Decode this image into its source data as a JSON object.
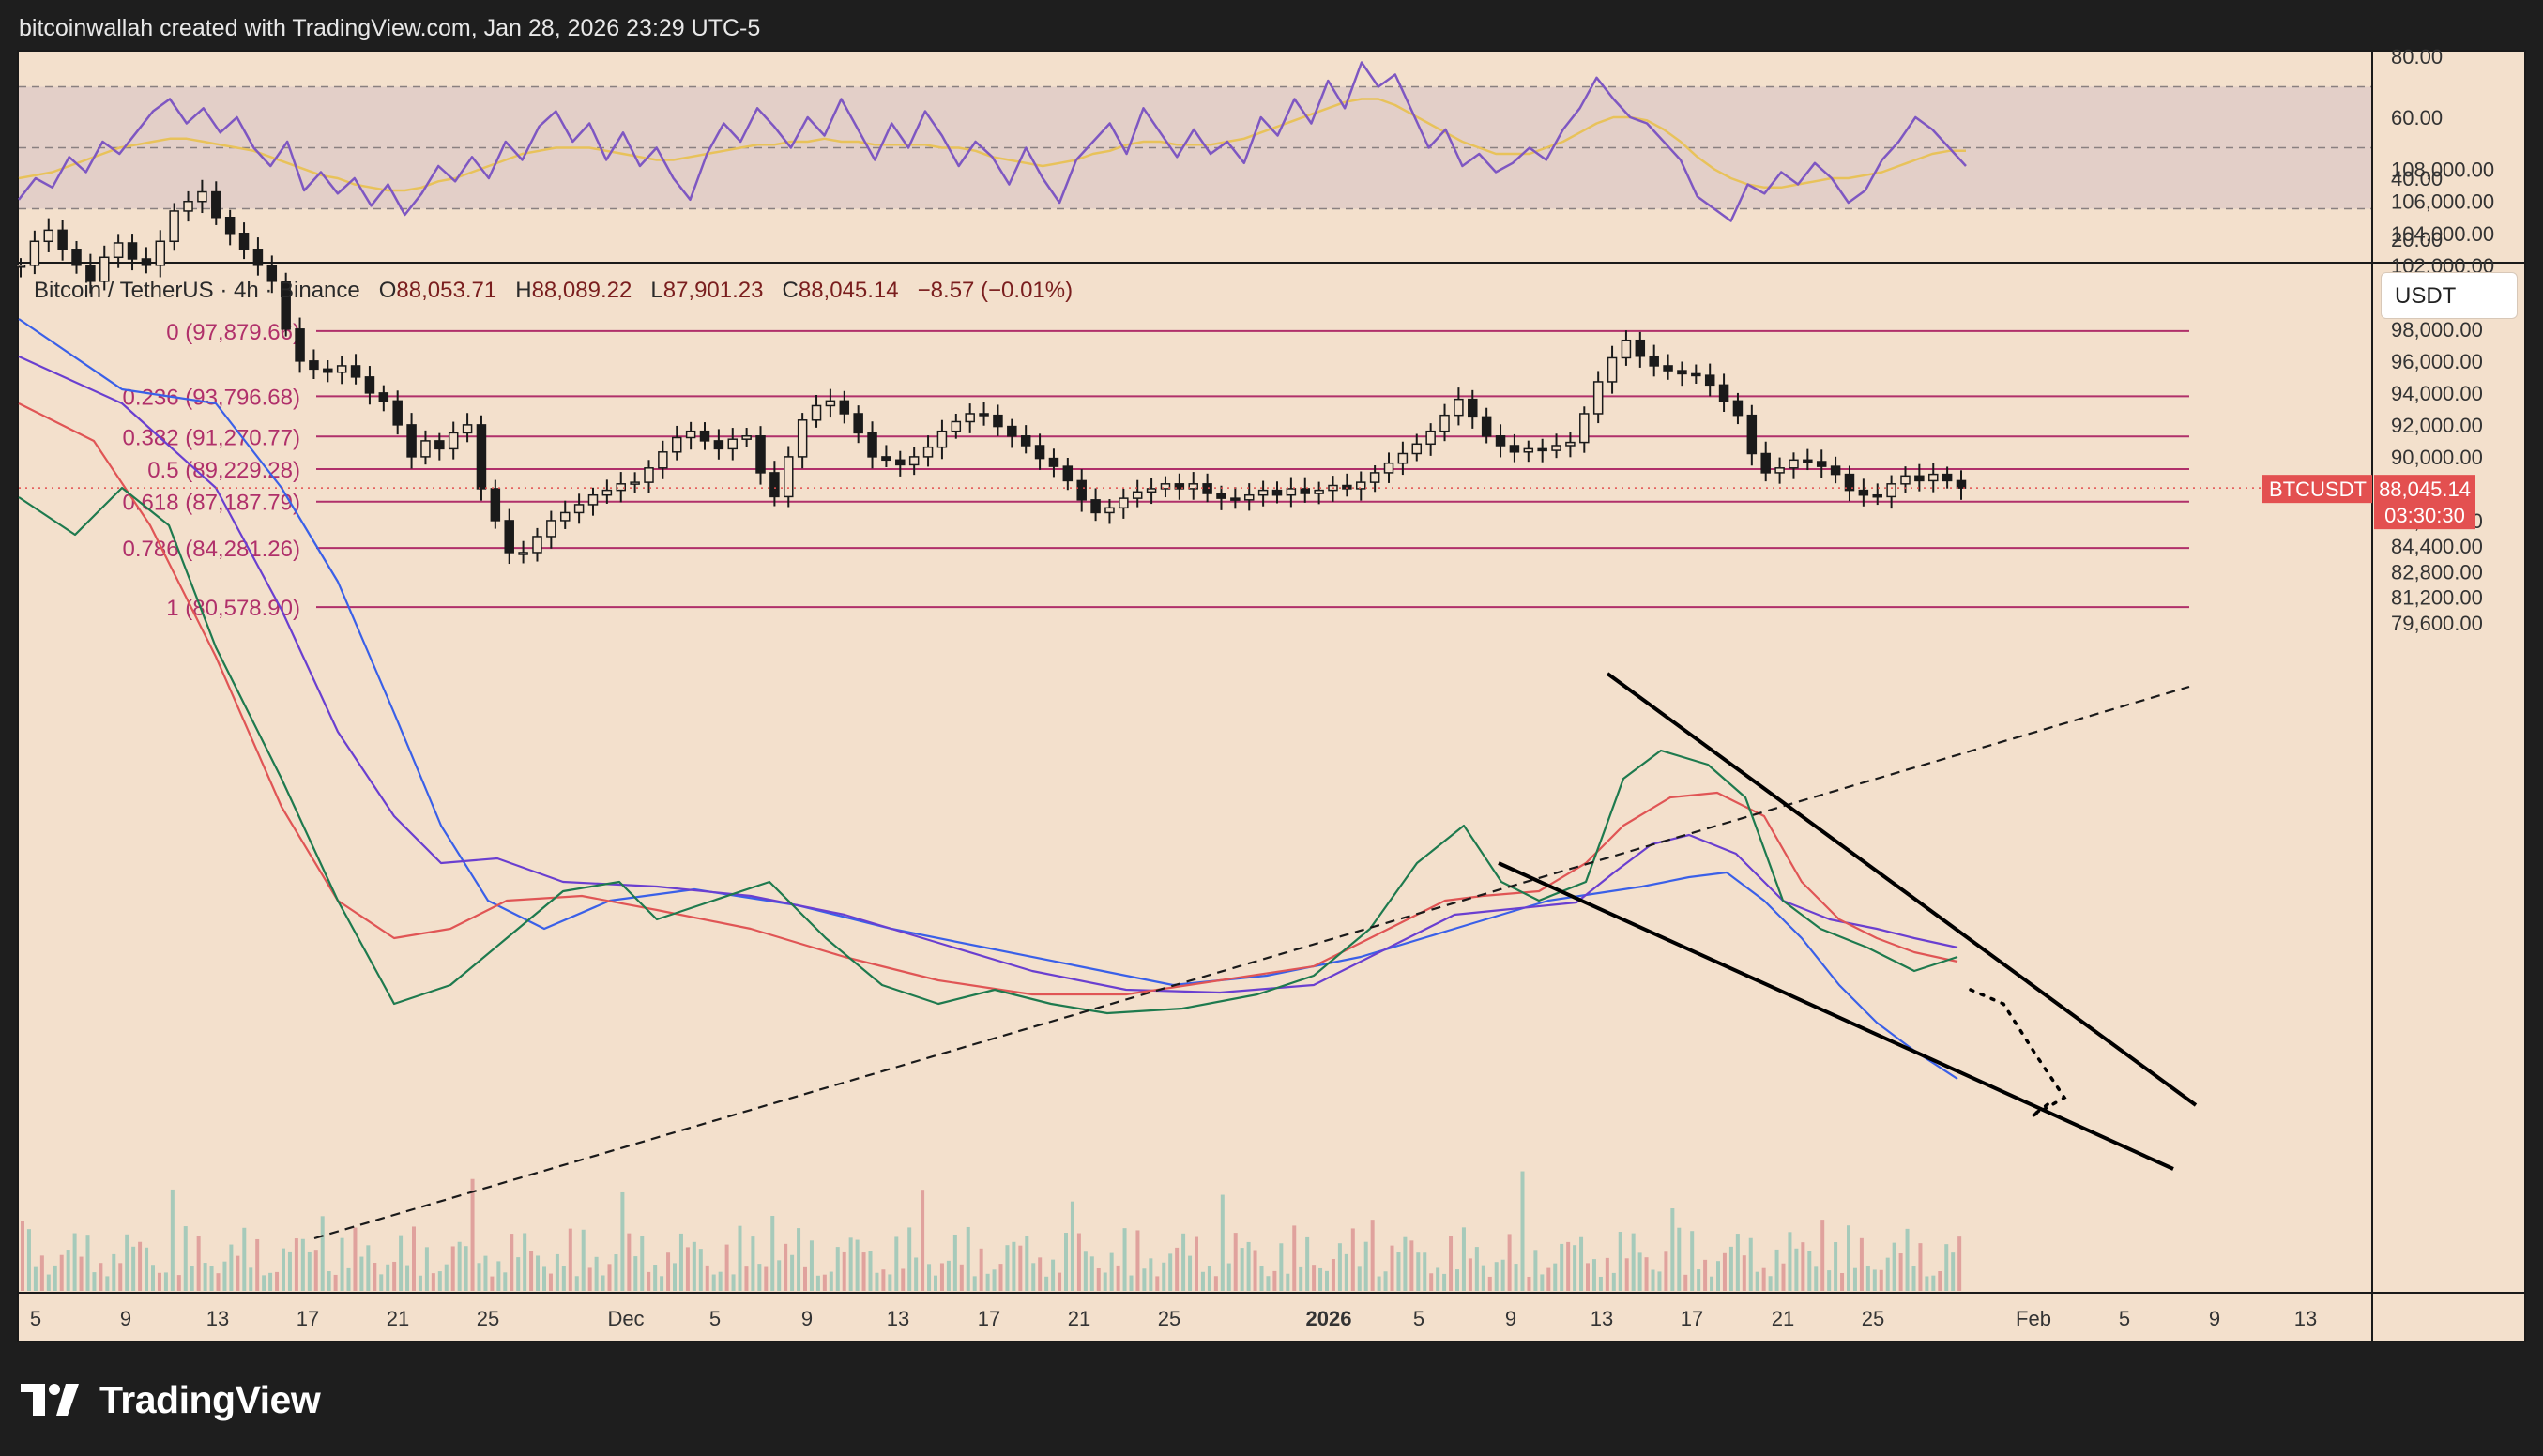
{
  "header": {
    "attribution": "bitcoinwallah created with TradingView.com, Jan 28, 2026 23:29 UTC-5"
  },
  "legend": {
    "symbol": "Bitcoin / TetherUS · 4h · Binance",
    "open_label": "O",
    "open": "88,053.71",
    "high_label": "H",
    "high": "88,089.22",
    "low_label": "L",
    "low": "87,901.23",
    "close_label": "C",
    "close": "88,045.14",
    "change": "−8.57 (−0.01%)"
  },
  "currency": "USDT",
  "price_tag": {
    "ticker": "BTCUSDT",
    "price": "88,045.14",
    "countdown": "03:30:30"
  },
  "brand": {
    "name": "TradingView"
  },
  "colors": {
    "background": "#f3e0cc",
    "fib": "#b0306a",
    "candle": "#1a1a1a",
    "ma_fast": "#1e7a4e",
    "ma_red": "#e05555",
    "ma_purple": "#6a3fd0",
    "ma_blue": "#3a60e8",
    "rsi": "#7e57c2",
    "rsi_ma": "#e8c25a",
    "price_tag": "#e35050"
  },
  "chart_data": [
    {
      "type": "line",
      "name": "RSI",
      "y_ticks": [
        "80.00",
        "60.00",
        "40.00",
        "20.00"
      ],
      "ylim": [
        15,
        82
      ],
      "band": [
        30,
        70
      ],
      "mid": 50,
      "rsi": [
        33,
        40,
        37,
        47,
        42,
        52,
        48,
        55,
        62,
        66,
        58,
        63,
        55,
        60,
        50,
        44,
        52,
        36,
        42,
        35,
        40,
        31,
        38,
        28,
        35,
        44,
        39,
        47,
        40,
        52,
        46,
        57,
        62,
        52,
        58,
        46,
        55,
        44,
        50,
        40,
        33,
        48,
        58,
        52,
        63,
        57,
        50,
        60,
        54,
        66,
        56,
        46,
        58,
        50,
        62,
        54,
        44,
        52,
        47,
        38,
        50,
        40,
        32,
        46,
        52,
        58,
        48,
        63,
        55,
        47,
        56,
        48,
        52,
        45,
        60,
        54,
        66,
        58,
        72,
        63,
        78,
        70,
        74,
        62,
        50,
        56,
        44,
        48,
        42,
        45,
        50,
        46,
        56,
        63,
        73,
        66,
        60,
        58,
        52,
        46,
        34,
        30,
        26,
        38,
        35,
        42,
        38,
        45,
        40,
        32,
        36,
        46,
        52,
        60,
        56,
        50,
        44
      ],
      "rsi_ma": [
        40,
        41,
        42,
        44,
        46,
        48,
        50,
        51,
        52,
        53,
        53,
        52,
        51,
        50,
        49,
        47,
        45,
        43,
        41,
        40,
        38,
        37,
        36,
        36,
        37,
        39,
        40,
        42,
        44,
        46,
        48,
        49,
        50,
        50,
        50,
        49,
        48,
        47,
        46,
        46,
        47,
        48,
        49,
        50,
        51,
        51,
        52,
        52,
        53,
        52,
        52,
        51,
        51,
        51,
        51,
        50,
        50,
        49,
        47,
        46,
        45,
        44,
        45,
        46,
        48,
        49,
        51,
        52,
        52,
        51,
        51,
        51,
        52,
        53,
        55,
        57,
        59,
        61,
        63,
        65,
        66,
        66,
        64,
        61,
        58,
        55,
        52,
        50,
        48,
        48,
        48,
        50,
        52,
        55,
        58,
        60,
        60,
        59,
        56,
        52,
        47,
        43,
        40,
        38,
        37,
        37,
        38,
        39,
        40,
        40,
        41,
        42,
        44,
        46,
        48,
        49,
        49
      ]
    },
    {
      "type": "candlestick",
      "title": "Bitcoin / TetherUS · 4h · Binance",
      "ylim": [
        79000,
        110500
      ],
      "y_ticks": [
        "108,000.00",
        "106,000.00",
        "104,000.00",
        "102,000.00",
        "100,000.00",
        "98,000.00",
        "96,000.00",
        "94,000.00",
        "92,000.00",
        "90,000.00",
        "88,000.00",
        "86,000.00",
        "84,400.00",
        "82,800.00",
        "81,200.00",
        "79,600.00"
      ],
      "x_ticks": [
        "5",
        "9",
        "13",
        "17",
        "21",
        "25",
        "Dec",
        "5",
        "9",
        "13",
        "17",
        "21",
        "25",
        "2026",
        "5",
        "9",
        "13",
        "17",
        "21",
        "25",
        "Feb",
        "5",
        "9",
        "13"
      ],
      "fib_levels": [
        {
          "label": "0 (97,879.66)",
          "value": 97879.66
        },
        {
          "label": "0.236 (93,796.68)",
          "value": 93796.68
        },
        {
          "label": "0.382 (91,270.77)",
          "value": 91270.77
        },
        {
          "label": "0.5 (89,229.28)",
          "value": 89229.28
        },
        {
          "label": "0.618 (87,187.79)",
          "value": 87187.79
        },
        {
          "label": "0.786 (84,281.26)",
          "value": 84281.26
        },
        {
          "label": "1 (80,578.90)",
          "value": 80578.9
        }
      ],
      "close": [
        102000,
        103500,
        104200,
        103000,
        102000,
        101000,
        102500,
        103400,
        102400,
        102000,
        103500,
        105400,
        106000,
        106600,
        105000,
        104000,
        103000,
        102000,
        101000,
        98000,
        96000,
        95500,
        95300,
        95700,
        95000,
        94000,
        93500,
        92000,
        90000,
        91000,
        90500,
        91500,
        92000,
        88000,
        86000,
        84000,
        84000,
        85000,
        86000,
        86500,
        87000,
        87600,
        87900,
        88300,
        88400,
        89300,
        90300,
        91200,
        91600,
        91000,
        90500,
        91100,
        91300,
        89000,
        87500,
        90000,
        92300,
        93200,
        93500,
        92700,
        91500,
        90000,
        89800,
        89500,
        90000,
        90600,
        91600,
        92200,
        92700,
        92600,
        91900,
        91300,
        90700,
        89900,
        89400,
        88500,
        87300,
        86500,
        86800,
        87400,
        87800,
        88000,
        88300,
        88000,
        88300,
        87700,
        87400,
        87300,
        87600,
        87900,
        87600,
        88000,
        87700,
        87900,
        88200,
        88000,
        88400,
        89000,
        89600,
        90200,
        90800,
        91600,
        92600,
        93600,
        92500,
        91300,
        90700,
        90300,
        90500,
        90400,
        90700,
        90900,
        92700,
        94700,
        96200,
        97300,
        96300,
        95700,
        95400,
        95200,
        95100,
        94500,
        93500,
        92600,
        90200,
        89000,
        89300,
        89800,
        89700,
        89400,
        88900,
        87900,
        87600,
        87500,
        88300,
        88800,
        88500,
        88900,
        88500,
        88045
      ]
    }
  ]
}
